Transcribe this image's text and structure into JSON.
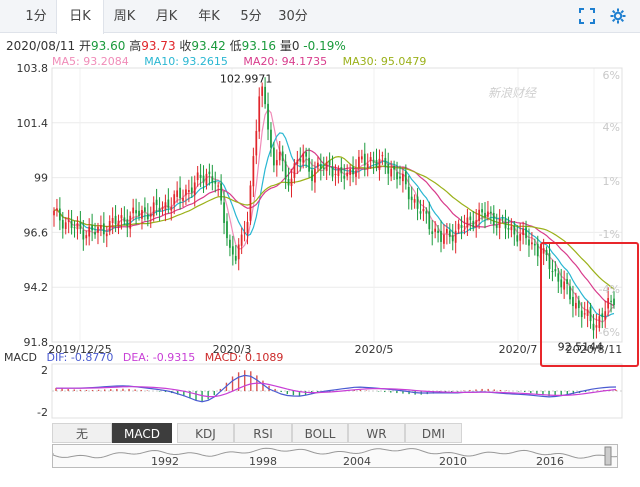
{
  "tabs": [
    "1分",
    "日K",
    "周K",
    "月K",
    "年K",
    "5分",
    "30分"
  ],
  "active_tab": "日K",
  "info": {
    "date": "2020/08/11",
    "open_label": "开",
    "open": "93.60",
    "high_label": "高",
    "high": "93.73",
    "close_label": "收",
    "close": "93.42",
    "low_label": "低",
    "low": "93.16",
    "volume_label": "量",
    "volume": "0",
    "change": "-0.19%"
  },
  "ma": [
    {
      "label": "MA5: 93.2084",
      "color": "#f08cb8"
    },
    {
      "label": "MA10: 93.2615",
      "color": "#2ab7d2"
    },
    {
      "label": "MA20: 94.1735",
      "color": "#d83c8c"
    },
    {
      "label": "MA30: 95.0479",
      "color": "#9bb11a"
    }
  ],
  "macd_info": {
    "name": "MACD",
    "dif": "DIF: -0.8770",
    "dea": "DEA: -0.9315",
    "macd": "MACD: 0.1089",
    "dif_color": "#4a5bd1",
    "dea_color": "#c83fd6",
    "macd_color": "#cc2a2a"
  },
  "indicator_buttons": [
    "无",
    "MACD",
    "KDJ",
    "RSI",
    "BOLL",
    "WR",
    "DMI"
  ],
  "active_indicator": "MACD",
  "navigator_years": [
    "1992",
    "1998",
    "2004",
    "2010",
    "2016"
  ],
  "watermark": "新浪财经",
  "colors": {
    "up": "#e0262b",
    "down": "#1a9a3c",
    "highlight_box": "#e8262b"
  },
  "chart_data": {
    "type": "candlestick",
    "y_ticks": [
      "103.8",
      "101.4",
      "99",
      "96.6",
      "94.2",
      "91.8"
    ],
    "pct_ticks": [
      "6%",
      "4%",
      "1%",
      "-1%",
      "-4%",
      "-6%"
    ],
    "x_ticks": [
      "2019/12/25",
      "2020/3",
      "2020/5",
      "2020/7",
      "2020/8/11"
    ],
    "ylim": [
      91.8,
      103.8
    ],
    "annotations": {
      "max": "102.9971",
      "min": "92.5144"
    },
    "macd_ticks": [
      "2",
      "-2"
    ],
    "close_path": [
      [
        0,
        97.4
      ],
      [
        8,
        96.7
      ],
      [
        14,
        96.6
      ],
      [
        20,
        97.0
      ],
      [
        28,
        97.4
      ],
      [
        35,
        97.6
      ],
      [
        42,
        98.1
      ],
      [
        48,
        98.7
      ],
      [
        52,
        99.2
      ],
      [
        55,
        98.8
      ],
      [
        58,
        97.3
      ],
      [
        60,
        95.8
      ],
      [
        62,
        95.5
      ],
      [
        64,
        96.2
      ],
      [
        66,
        97.4
      ],
      [
        68,
        99.8
      ],
      [
        70,
        102.5
      ],
      [
        71,
        102.99
      ],
      [
        73,
        101.5
      ],
      [
        75,
        99.3
      ],
      [
        77,
        100.2
      ],
      [
        79,
        98.8
      ],
      [
        82,
        99.4
      ],
      [
        85,
        100.0
      ],
      [
        88,
        99.2
      ],
      [
        91,
        99.4
      ],
      [
        94,
        99.6
      ],
      [
        97,
        99.0
      ],
      [
        100,
        99.2
      ],
      [
        104,
        99.6
      ],
      [
        108,
        99.8
      ],
      [
        112,
        99.6
      ],
      [
        116,
        99.3
      ],
      [
        120,
        98.6
      ],
      [
        124,
        97.7
      ],
      [
        128,
        97.0
      ],
      [
        132,
        96.3
      ],
      [
        136,
        96.6
      ],
      [
        140,
        96.9
      ],
      [
        144,
        97.3
      ],
      [
        148,
        97.4
      ],
      [
        152,
        97.0
      ],
      [
        156,
        96.7
      ],
      [
        160,
        96.4
      ],
      [
        164,
        96.0
      ],
      [
        168,
        95.4
      ],
      [
        172,
        94.6
      ],
      [
        176,
        93.8
      ],
      [
        180,
        93.1
      ],
      [
        183,
        92.7
      ],
      [
        185,
        92.6
      ],
      [
        187,
        93.0
      ],
      [
        189,
        93.4
      ],
      [
        191,
        93.42
      ]
    ],
    "macd_hist": [
      0.3,
      0.25,
      0.2,
      0.15,
      0.12,
      0.1,
      0.1,
      0.12,
      0.15,
      0.18,
      0.2,
      0.22,
      0.2,
      0.15,
      0.1,
      0.05,
      0.0,
      -0.05,
      -0.1,
      -0.2,
      -0.35,
      -0.5,
      -0.7,
      -0.9,
      -1.0,
      -0.8,
      -0.4,
      0.2,
      0.8,
      1.4,
      1.8,
      2.0,
      1.9,
      1.5,
      1.0,
      0.5,
      0.2,
      -0.1,
      -0.3,
      -0.4,
      -0.45,
      -0.4,
      -0.3,
      -0.2,
      -0.15,
      -0.1,
      -0.05,
      0.0,
      0.05,
      0.1,
      0.1,
      0.05,
      0.0,
      -0.05,
      -0.1,
      -0.15,
      -0.2,
      -0.25,
      -0.3,
      -0.35,
      -0.35,
      -0.3,
      -0.25,
      -0.2,
      -0.15,
      -0.1,
      -0.05,
      0.05,
      0.1,
      0.15,
      0.2,
      0.2,
      0.15,
      0.1,
      0.05,
      0.0,
      -0.05,
      -0.1,
      -0.2,
      -0.3,
      -0.4,
      -0.5,
      -0.5,
      -0.45,
      -0.4,
      -0.3,
      -0.2,
      -0.1,
      0.0,
      0.05,
      0.1,
      0.12,
      0.11
    ]
  }
}
